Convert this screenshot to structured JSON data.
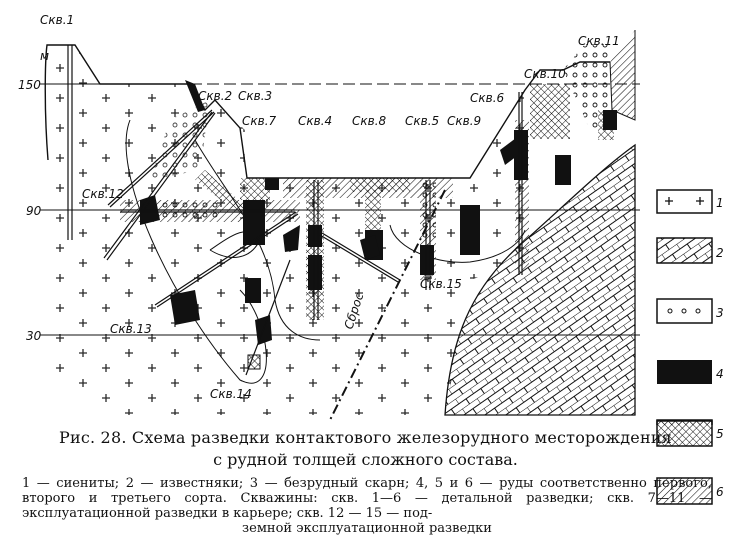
{
  "figure": {
    "axis_unit": "м",
    "levels": [
      "150",
      "90",
      "30"
    ],
    "wells": {
      "w1": "Скв.1",
      "w2": "Скв.2",
      "w3": "Скв.3",
      "w4": "Скв.4",
      "w5": "Скв.5",
      "w6": "Скв.6",
      "w7": "Скв.7",
      "w8": "Скв.8",
      "w9": "Скв.9",
      "w10": "Скв.10",
      "w11": "Скв.11",
      "w12": "Скв.12",
      "w13": "Скв.13",
      "w14": "Скв.14",
      "w15": "Скв.15"
    },
    "fault_label": "Сброс",
    "legend": [
      {
        "num": "1",
        "pattern": "crosses"
      },
      {
        "num": "2",
        "pattern": "brick-hatch"
      },
      {
        "num": "3",
        "pattern": "circles"
      },
      {
        "num": "4",
        "pattern": "solid-black"
      },
      {
        "num": "5",
        "pattern": "crosshatch"
      },
      {
        "num": "6",
        "pattern": "diagonal-hatch"
      }
    ]
  },
  "caption": {
    "title_line1": "Рис. 28. Схема разведки контактового железорудного месторождения",
    "title_line2": "с рудной толщей сложного состава.",
    "legend_text": "1 — сиениты; 2 — известняки; 3 — безрудный скарн; 4, 5 и 6 — руды соответственно первого, второго и третьего сорта. Скважины: скв. 1—6 — детальной разведки; скв. 7—11 — эксплуатационной разведки в карьере; скв. 12 — 15 — под-",
    "legend_text_last": "земной эксплуатационной разведки"
  }
}
